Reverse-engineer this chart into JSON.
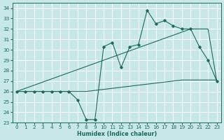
{
  "xlabel": "Humidex (Indice chaleur)",
  "bg_color": "#c8e8e8",
  "grid_color": "#ffffff",
  "line_color": "#1a6b5a",
  "xlim": [
    -0.5,
    23.5
  ],
  "ylim": [
    23,
    34.5
  ],
  "yticks": [
    23,
    24,
    25,
    26,
    27,
    28,
    29,
    30,
    31,
    32,
    33,
    34
  ],
  "xticks": [
    0,
    1,
    2,
    3,
    4,
    5,
    6,
    7,
    8,
    9,
    10,
    11,
    12,
    13,
    14,
    15,
    16,
    17,
    18,
    19,
    20,
    21,
    22,
    23
  ],
  "x_data": [
    0,
    1,
    2,
    3,
    4,
    5,
    6,
    7,
    8,
    9,
    10,
    11,
    12,
    13,
    14,
    15,
    16,
    17,
    18,
    19,
    20,
    21,
    22,
    23
  ],
  "y_main": [
    26,
    26,
    26,
    26,
    26,
    26,
    26,
    25.2,
    23.3,
    23.3,
    30.3,
    30.7,
    28.3,
    30.3,
    30.5,
    33.8,
    32.5,
    32.8,
    32.3,
    32.0,
    32.0,
    30.3,
    29.0,
    27.0
  ],
  "y_linear": [
    26,
    26.3,
    26.6,
    26.9,
    27.2,
    27.5,
    27.8,
    28.1,
    28.4,
    28.7,
    29.0,
    29.3,
    29.6,
    29.9,
    30.2,
    30.5,
    30.8,
    31.1,
    31.4,
    31.7,
    32.0,
    32.0,
    32.0,
    27.0
  ],
  "y_flat": [
    26,
    26,
    26,
    26,
    26,
    26,
    26,
    26,
    26,
    26.1,
    26.2,
    26.3,
    26.4,
    26.5,
    26.6,
    26.7,
    26.8,
    26.9,
    27.0,
    27.1,
    27.1,
    27.1,
    27.1,
    27.1
  ]
}
